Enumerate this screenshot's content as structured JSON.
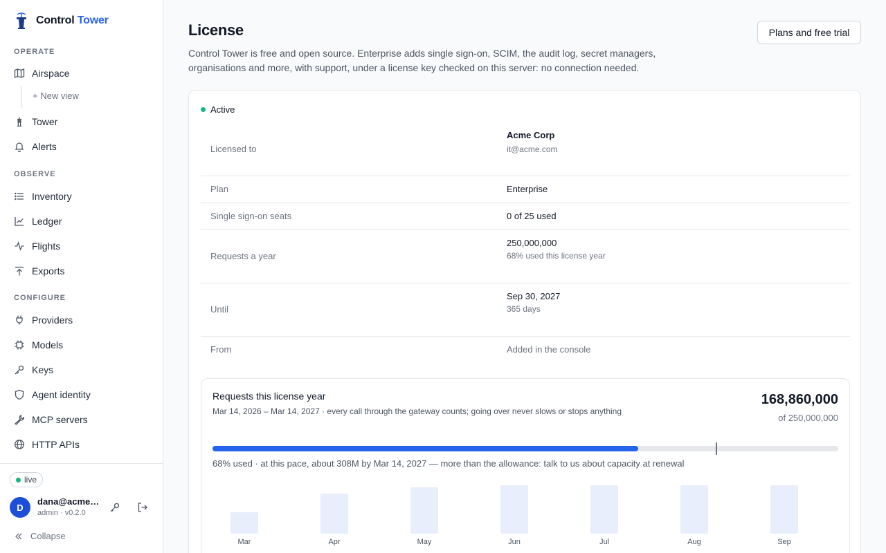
{
  "brand": {
    "name_primary": "Control",
    "name_accent": "Tower",
    "accent_color": "#2563eb"
  },
  "sidebar": {
    "sections": [
      {
        "label": "OPERATE"
      },
      {
        "label": "OBSERVE"
      },
      {
        "label": "CONFIGURE"
      }
    ],
    "items": [
      {
        "label": "Airspace",
        "icon": "map-icon"
      },
      {
        "label": "+ New view",
        "icon": ""
      },
      {
        "label": "Tower",
        "icon": "tower-icon"
      },
      {
        "label": "Alerts",
        "icon": "bell-icon"
      },
      {
        "label": "Inventory",
        "icon": "list-icon"
      },
      {
        "label": "Ledger",
        "icon": "chart-line-icon"
      },
      {
        "label": "Flights",
        "icon": "activity-icon"
      },
      {
        "label": "Exports",
        "icon": "upload-icon"
      },
      {
        "label": "Providers",
        "icon": "plug-icon"
      },
      {
        "label": "Models",
        "icon": "chip-icon"
      },
      {
        "label": "Keys",
        "icon": "key-icon"
      },
      {
        "label": "Agent identity",
        "icon": "shield-icon"
      },
      {
        "label": "MCP servers",
        "icon": "wrench-icon"
      },
      {
        "label": "HTTP APIs",
        "icon": "globe-icon"
      }
    ],
    "footer": {
      "status": "live",
      "avatar_initial": "D",
      "user_name": "dana@acme.com",
      "user_role": "admin · v0.2.0",
      "collapse_label": "Collapse"
    }
  },
  "header": {
    "title": "License",
    "description": "Control Tower is free and open source. Enterprise adds single sign-on, SCIM, the audit log, secret managers, organisations and more, with support, under a license key checked on this server: no connection needed.",
    "plans_button": "Plans and free trial"
  },
  "license": {
    "status": "Active",
    "status_color": "#10b981",
    "rows": [
      {
        "label": "Licensed to",
        "value": "Acme Corp",
        "sub": "it@acme.com"
      },
      {
        "label": "Plan",
        "value": "Enterprise",
        "sub": ""
      },
      {
        "label": "Single sign-on seats",
        "value": "0 of 25 used",
        "sub": ""
      },
      {
        "label": "Requests a year",
        "value": "250,000,000",
        "sub": "68% used this license year"
      },
      {
        "label": "Until",
        "value": "Sep 30, 2027",
        "sub": "365 days"
      },
      {
        "label": "From",
        "value": "Added in the console",
        "sub": ""
      }
    ]
  },
  "usage": {
    "title": "Requests this license year",
    "subtitle": "Mar 14, 2026 – Mar 14, 2027 · every call through the gateway counts; going over never slows or stops anything",
    "total": "168,860,000",
    "of": "of 250,000,000",
    "used_fraction": 0.68,
    "marker_fraction": 0.805,
    "note": "68% used · at this pace, about 308M by Mar 14, 2027 — more than the allowance: talk to us about capacity at renewal",
    "months": [
      {
        "label": "Mar",
        "value": 0.45
      },
      {
        "label": "Apr",
        "value": 0.83
      },
      {
        "label": "May",
        "value": 0.96
      },
      {
        "label": "Jun",
        "value": 1.0
      },
      {
        "label": "Jul",
        "value": 1.0
      },
      {
        "label": "Aug",
        "value": 1.0
      },
      {
        "label": "Sep",
        "value": 1.0
      }
    ]
  }
}
